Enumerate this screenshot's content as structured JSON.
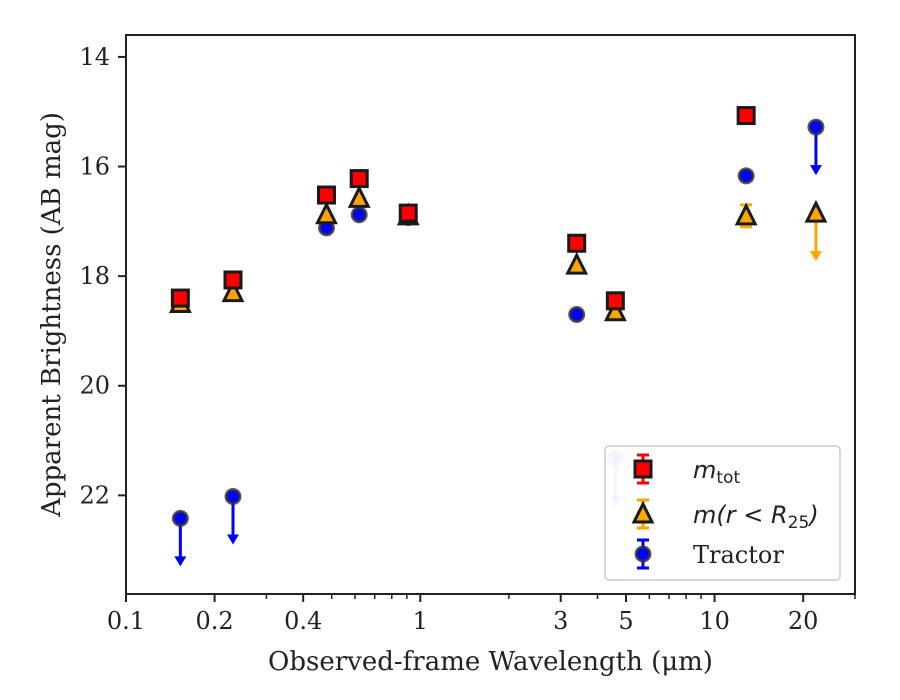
{
  "chart_data": {
    "type": "scatter",
    "title": "",
    "xlabel": "Observed-frame Wavelength (μm)",
    "ylabel": "Apparent Brightness (AB mag)",
    "xscale": "log",
    "xlim": [
      0.1,
      30
    ],
    "ylim": [
      23.8,
      13.6
    ],
    "y_inverted": true,
    "grid": false,
    "legend_position": "lower-right",
    "x_ticks": [
      {
        "value": 0.1,
        "label": "0.1"
      },
      {
        "value": 0.2,
        "label": "0.2"
      },
      {
        "value": 0.4,
        "label": "0.4"
      },
      {
        "value": 1,
        "label": "1"
      },
      {
        "value": 3,
        "label": "3"
      },
      {
        "value": 5,
        "label": "5"
      },
      {
        "value": 10,
        "label": "10"
      },
      {
        "value": 20,
        "label": "20"
      }
    ],
    "y_ticks": [
      {
        "value": 14,
        "label": "14"
      },
      {
        "value": 16,
        "label": "16"
      },
      {
        "value": 18,
        "label": "18"
      },
      {
        "value": 20,
        "label": "20"
      },
      {
        "value": 22,
        "label": "22"
      }
    ],
    "series": [
      {
        "name": "m_tot",
        "marker": "square",
        "color": "#ff0000",
        "edge_color": "#1a1a1a",
        "points": [
          {
            "x": 0.153,
            "y": 18.4,
            "upper_limit": false
          },
          {
            "x": 0.231,
            "y": 18.07,
            "upper_limit": false
          },
          {
            "x": 0.48,
            "y": 16.52,
            "upper_limit": false
          },
          {
            "x": 0.62,
            "y": 16.22,
            "upper_limit": false
          },
          {
            "x": 0.91,
            "y": 16.85,
            "upper_limit": false
          },
          {
            "x": 3.4,
            "y": 17.4,
            "upper_limit": false
          },
          {
            "x": 4.6,
            "y": 18.45,
            "upper_limit": false
          },
          {
            "x": 12.8,
            "y": 15.07,
            "upper_limit": false
          }
        ]
      },
      {
        "name": "m(r<R25)",
        "marker": "triangle",
        "color": "#ffa500",
        "edge_color": "#1a1a1a",
        "points": [
          {
            "x": 0.153,
            "y": 18.5,
            "upper_limit": false
          },
          {
            "x": 0.231,
            "y": 18.3,
            "upper_limit": false
          },
          {
            "x": 0.48,
            "y": 16.88,
            "upper_limit": false
          },
          {
            "x": 0.62,
            "y": 16.58,
            "upper_limit": false
          },
          {
            "x": 0.91,
            "y": 16.9,
            "upper_limit": false
          },
          {
            "x": 3.4,
            "y": 17.8,
            "upper_limit": false
          },
          {
            "x": 4.6,
            "y": 18.65,
            "upper_limit": false
          },
          {
            "x": 12.8,
            "y": 16.9,
            "upper_limit": false,
            "err": 0.2
          },
          {
            "x": 22.1,
            "y": 16.85,
            "upper_limit": true
          }
        ]
      },
      {
        "name": "Tractor",
        "marker": "circle",
        "color": "#0000ff",
        "edge_color": "#1a1a1a",
        "points": [
          {
            "x": 0.153,
            "y": 22.42,
            "upper_limit": true
          },
          {
            "x": 0.231,
            "y": 22.02,
            "upper_limit": true
          },
          {
            "x": 0.48,
            "y": 17.12,
            "upper_limit": false
          },
          {
            "x": 0.62,
            "y": 16.88,
            "upper_limit": false
          },
          {
            "x": 0.91,
            "y": 16.93,
            "upper_limit": false
          },
          {
            "x": 3.4,
            "y": 18.7,
            "upper_limit": false
          },
          {
            "x": 4.6,
            "y": 21.32,
            "upper_limit": true,
            "faded": true
          },
          {
            "x": 12.8,
            "y": 16.17,
            "upper_limit": false
          },
          {
            "x": 22.1,
            "y": 15.28,
            "upper_limit": true
          }
        ]
      }
    ],
    "legend": [
      {
        "series": 0,
        "label_italic": "m",
        "label_sub": "tot",
        "label_rest": ""
      },
      {
        "series": 1,
        "label_italic": "m",
        "label_sub": "",
        "label_rest": "(r < R",
        "label_sub2": "25",
        "label_close": ")"
      },
      {
        "series": 2,
        "label_italic": "",
        "label_sub": "",
        "label_rest": "Tractor"
      }
    ]
  }
}
